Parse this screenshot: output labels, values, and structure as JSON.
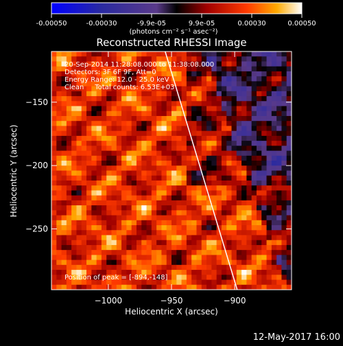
{
  "colorbar": {
    "ticks": [
      "-0.00050",
      "-0.00030",
      "-9.9e-05",
      "9.9e-05",
      "0.00030",
      "0.00050"
    ],
    "unit_label": "(photons cm⁻² s⁻¹ asec⁻²)",
    "range": [
      -0.0005,
      0.0005
    ]
  },
  "image": {
    "title": "Reconstructed RHESSI Image",
    "info_lines": [
      "20-Sep-2014 11:28:08.000 to 11:38:08.000",
      "Detectors: 3F 6F 9F, Att=0",
      "Energy Range: 12.0 - 25.0 keV",
      "Clean     Total counts: 6.53E+03"
    ],
    "position_label": "Position of peak = [-894,-148]"
  },
  "axes": {
    "xlabel": "Heliocentric X (arcsec)",
    "ylabel": "Heliocentric Y (arcsec)",
    "xticks": [
      -1000,
      -950,
      -900
    ],
    "yticks": [
      -150,
      -200,
      -250
    ],
    "xlim": [
      -1045,
      -855
    ],
    "ylim": [
      -298,
      -110
    ],
    "limb_line": [
      [
        -955,
        -110
      ],
      [
        -898,
        -298
      ]
    ]
  },
  "footer": {
    "timestamp": "12-May-2017 16:00"
  }
}
